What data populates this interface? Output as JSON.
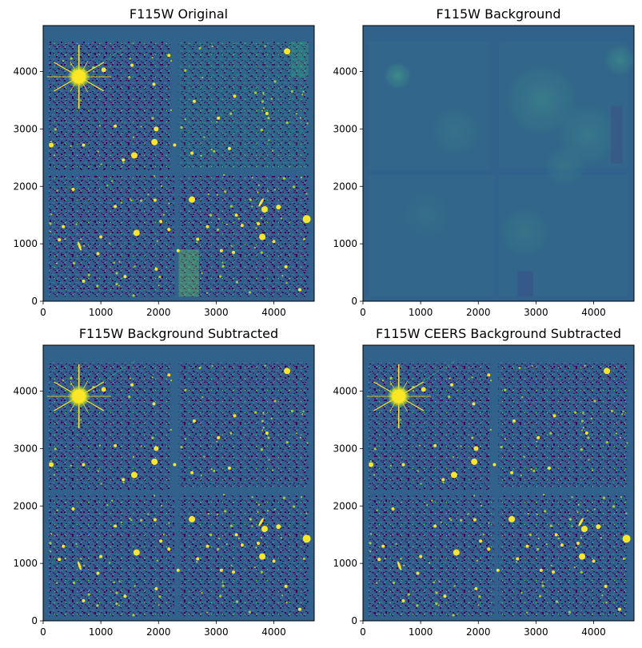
{
  "figure": {
    "panels": [
      {
        "title": "F115W Original",
        "variant": "original"
      },
      {
        "title": "F115W Background",
        "variant": "background"
      },
      {
        "title": "F115W Background Subtracted",
        "variant": "subtracted"
      },
      {
        "title": "F115W CEERS Background Subtracted",
        "variant": "ceers"
      }
    ],
    "x_ticks": [
      "0",
      "1000",
      "2000",
      "3000",
      "4000"
    ],
    "y_ticks": [
      "0",
      "1000",
      "2000",
      "3000",
      "4000"
    ],
    "x_range": [
      0,
      4700
    ],
    "y_range": [
      0,
      4800
    ],
    "colormap": "viridis",
    "colors": {
      "frame_fill": "#30628c",
      "noise_dark": "#440154",
      "noise_mid": "#2a788e",
      "source_bright": "#fde725",
      "background_base": "#32668a"
    }
  }
}
